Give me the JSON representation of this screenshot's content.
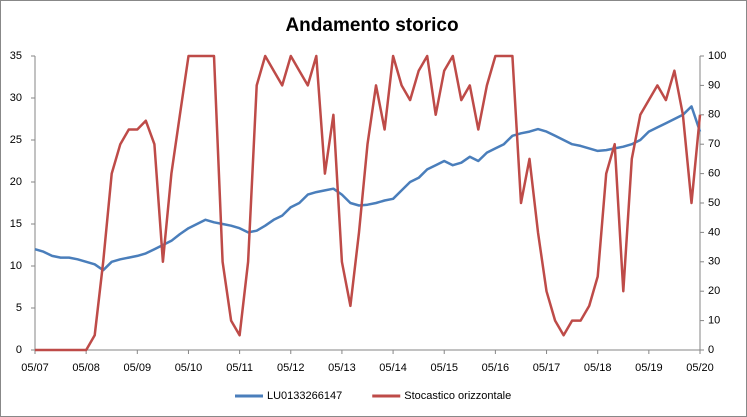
{
  "chart_data": {
    "type": "line",
    "title": "Andamento storico",
    "categories": [
      "05/07",
      null,
      null,
      null,
      null,
      null,
      "05/08",
      null,
      null,
      null,
      null,
      null,
      "05/09",
      null,
      null,
      null,
      null,
      null,
      "05/10",
      null,
      null,
      null,
      null,
      null,
      "05/11",
      null,
      null,
      null,
      null,
      null,
      "05/12",
      null,
      null,
      null,
      null,
      null,
      "05/13",
      null,
      null,
      null,
      null,
      null,
      "05/14",
      null,
      null,
      null,
      null,
      null,
      "05/15",
      null,
      null,
      null,
      null,
      null,
      "05/16",
      null,
      null,
      null,
      null,
      null,
      "05/17",
      null,
      null,
      null,
      null,
      null,
      "05/18",
      null,
      null,
      null,
      null,
      null,
      "05/19",
      null,
      null,
      null,
      null,
      null,
      "05/20"
    ],
    "series": [
      {
        "name": "LU0133266147",
        "color": "#4a7ebb",
        "values": [
          12,
          11.7,
          11.2,
          11,
          11,
          10.8,
          10.5,
          10.2,
          9.5,
          10.5,
          10.8,
          11,
          11.2,
          11.5,
          12,
          12.5,
          13,
          13.8,
          14.5,
          15,
          15.5,
          15.2,
          15,
          14.8,
          14.5,
          14,
          14.2,
          14.8,
          15.5,
          16,
          17,
          17.5,
          18.5,
          18.8,
          19,
          19.2,
          18.5,
          17.5,
          17.2,
          17.3,
          17.5,
          17.8,
          18,
          19,
          20,
          20.5,
          21.5,
          22,
          22.5,
          22,
          22.3,
          23,
          22.5,
          23.5,
          24,
          24.5,
          25.5,
          25.8,
          26,
          26.3,
          26,
          25.5,
          25,
          24.5,
          24.3,
          24,
          23.7,
          23.8,
          24,
          24.2,
          24.5,
          25,
          26,
          26.5,
          27,
          27.5,
          28,
          29,
          26
        ]
      },
      {
        "name": "Stocastico orizzontale",
        "color": "#be4b48",
        "axis": "y2",
        "values": [
          0,
          0,
          0,
          0,
          0,
          0,
          0,
          5,
          30,
          60,
          70,
          75,
          75,
          78,
          70,
          30,
          60,
          80,
          100,
          100,
          100,
          100,
          30,
          10,
          5,
          30,
          90,
          100,
          95,
          90,
          100,
          95,
          90,
          100,
          60,
          80,
          30,
          15,
          40,
          70,
          90,
          75,
          100,
          90,
          85,
          95,
          100,
          80,
          95,
          100,
          85,
          90,
          75,
          90,
          100,
          100,
          100,
          50,
          65,
          40,
          20,
          10,
          5,
          10,
          10,
          15,
          25,
          60,
          70,
          20,
          65,
          80,
          85,
          90,
          85,
          95,
          80,
          50,
          80
        ]
      }
    ],
    "ylim": [
      0,
      35
    ],
    "yticks": [
      0,
      5,
      10,
      15,
      20,
      25,
      30,
      35
    ],
    "y2lim": [
      0,
      100
    ],
    "y2ticks": [
      0,
      10,
      20,
      30,
      40,
      50,
      60,
      70,
      80,
      90,
      100
    ],
    "legend": "bottom"
  }
}
